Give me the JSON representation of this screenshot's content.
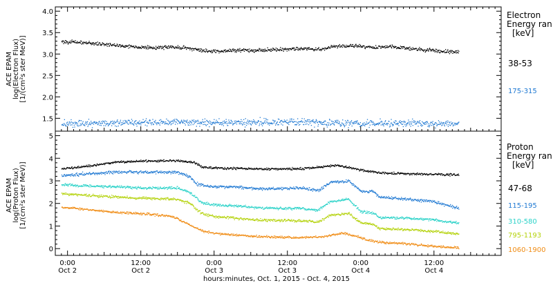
{
  "x_axis": {
    "title": "hours:minutes, Oct.  1, 2015 - Oct.  4, 2015",
    "ticks": [
      {
        "t": 0,
        "time": "0:00",
        "day": "Oct 2"
      },
      {
        "t": 12,
        "time": "12:00",
        "day": "Oct 2"
      },
      {
        "t": 24,
        "time": "0:00",
        "day": "Oct 3"
      },
      {
        "t": 36,
        "time": "12:00",
        "day": "Oct 3"
      },
      {
        "t": 48,
        "time": "0:00",
        "day": "Oct 4"
      },
      {
        "t": 60,
        "time": "12:00",
        "day": "Oct 4"
      }
    ]
  },
  "chart_data": [
    {
      "type": "scatter",
      "panel": "electron",
      "ylabel": [
        "ACE EPAM",
        "log(Electron Flux)",
        "[1/(cm²s ster MeV)]"
      ],
      "ylim": [
        1.2,
        4.1
      ],
      "yticks": [
        "1.5",
        "2.0",
        "2.5",
        "3.0",
        "3.5",
        "4.0"
      ],
      "xlim": [
        -2,
        71
      ],
      "x_unit": "hours from 0:00 Oct 2, 2015",
      "legend_title": [
        "Electron",
        "Energy ran",
        "[keV]"
      ],
      "series": [
        {
          "name": "38-53",
          "color": "#000000",
          "x": [
            -1,
            2,
            5,
            8,
            11,
            14,
            17,
            20,
            23,
            26,
            29,
            32,
            35,
            38,
            41,
            44,
            47,
            50,
            53,
            56,
            59,
            62,
            64
          ],
          "y": [
            3.3,
            3.28,
            3.25,
            3.21,
            3.18,
            3.15,
            3.18,
            3.14,
            3.07,
            3.09,
            3.1,
            3.1,
            3.12,
            3.14,
            3.12,
            3.19,
            3.2,
            3.17,
            3.18,
            3.14,
            3.1,
            3.07,
            3.05
          ],
          "noise": 0.025
        },
        {
          "name": "175-315",
          "color": "#1e78d2",
          "x": [
            -1,
            4,
            9,
            14,
            19,
            24,
            29,
            34,
            39,
            44,
            49,
            54,
            59,
            64
          ],
          "y": [
            1.38,
            1.39,
            1.4,
            1.41,
            1.42,
            1.4,
            1.41,
            1.42,
            1.41,
            1.4,
            1.39,
            1.4,
            1.39,
            1.38
          ],
          "noise": 0.05
        }
      ]
    },
    {
      "type": "scatter",
      "panel": "proton",
      "ylabel": [
        "ACE EPAM",
        "log(Proton Flux)",
        "[1/(cm²s ster MeV)]"
      ],
      "ylim": [
        -0.3,
        5.2
      ],
      "yticks": [
        "0",
        "1",
        "2",
        "3",
        "4",
        "5"
      ],
      "xlim": [
        -2,
        71
      ],
      "x_unit": "hours from 0:00 Oct 2, 2015",
      "legend_title": [
        "Proton",
        "Energy ran",
        "[keV]"
      ],
      "series": [
        {
          "name": "47-68",
          "color": "#000000",
          "x": [
            -1,
            3,
            8,
            13,
            18,
            21,
            22,
            26,
            32,
            38,
            44,
            48,
            51,
            56,
            64
          ],
          "y": [
            3.55,
            3.65,
            3.85,
            3.9,
            3.92,
            3.8,
            3.62,
            3.57,
            3.54,
            3.55,
            3.7,
            3.5,
            3.38,
            3.33,
            3.28
          ],
          "noise": 0.03
        },
        {
          "name": "115-195",
          "color": "#1e78d2",
          "x": [
            -1,
            3,
            8,
            13,
            18,
            20,
            21,
            24,
            28,
            32,
            38,
            41,
            43,
            46,
            48,
            50,
            51,
            56,
            60,
            64
          ],
          "y": [
            3.25,
            3.33,
            3.4,
            3.4,
            3.4,
            3.2,
            2.88,
            2.75,
            2.75,
            2.65,
            2.7,
            2.6,
            2.95,
            3.0,
            2.55,
            2.55,
            2.3,
            2.2,
            2.1,
            1.8
          ],
          "noise": 0.04
        },
        {
          "name": "310-580",
          "color": "#2ad2c8",
          "x": [
            -1,
            3,
            8,
            13,
            18,
            20,
            22,
            24,
            28,
            32,
            38,
            41,
            43,
            46,
            48,
            50,
            51,
            56,
            60,
            64
          ],
          "y": [
            2.85,
            2.8,
            2.75,
            2.7,
            2.7,
            2.5,
            2.05,
            1.95,
            1.9,
            1.8,
            1.8,
            1.72,
            2.1,
            2.2,
            1.65,
            1.6,
            1.4,
            1.35,
            1.3,
            1.15
          ],
          "noise": 0.035
        },
        {
          "name": "795-1193",
          "color": "#b4d20a",
          "x": [
            -1,
            3,
            8,
            13,
            18,
            20,
            22,
            24,
            28,
            32,
            38,
            41,
            43,
            46,
            48,
            50,
            51,
            56,
            60,
            64
          ],
          "y": [
            2.45,
            2.38,
            2.3,
            2.25,
            2.2,
            2.0,
            1.55,
            1.45,
            1.35,
            1.28,
            1.25,
            1.2,
            1.5,
            1.58,
            1.15,
            1.1,
            0.9,
            0.85,
            0.78,
            0.65
          ],
          "noise": 0.035
        },
        {
          "name": "1060-1900",
          "color": "#f08c14",
          "x": [
            -1,
            3,
            8,
            13,
            17,
            19,
            22,
            24,
            28,
            32,
            38,
            42,
            45,
            47,
            49,
            51,
            56,
            60,
            64
          ],
          "y": [
            1.85,
            1.75,
            1.62,
            1.55,
            1.45,
            1.2,
            0.8,
            0.7,
            0.6,
            0.55,
            0.5,
            0.55,
            0.7,
            0.6,
            0.4,
            0.3,
            0.22,
            0.12,
            0.05
          ],
          "noise": 0.03
        }
      ]
    }
  ]
}
